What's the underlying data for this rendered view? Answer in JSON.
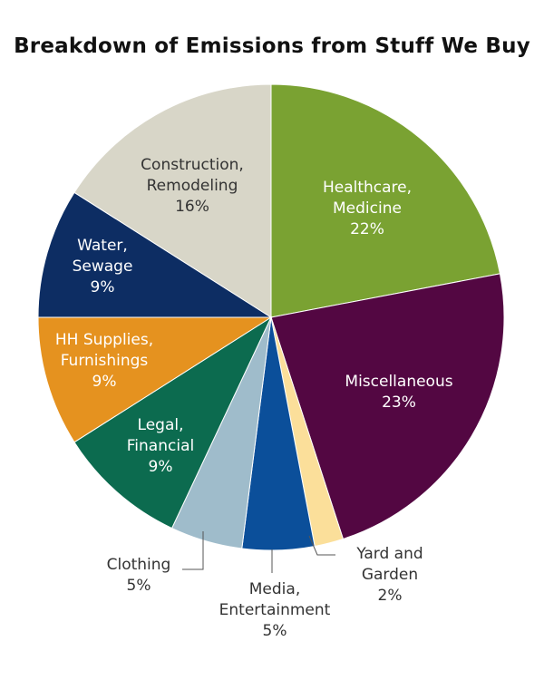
{
  "chart_data": {
    "type": "pie",
    "title": "Breakdown of Emissions from Stuff We Buy",
    "unit": "%",
    "slices": [
      {
        "label_lines": [
          "Healthcare,",
          "Medicine"
        ],
        "value": 22,
        "value_label": "22%",
        "color": "#7aa232",
        "text_color": "#ffffff"
      },
      {
        "label_lines": [
          "Miscellaneous"
        ],
        "value": 23,
        "value_label": "23%",
        "color": "#530742",
        "text_color": "#ffffff"
      },
      {
        "label_lines": [
          "Yard and",
          "Garden"
        ],
        "value": 2,
        "value_label": "2%",
        "color": "#fbdf9a",
        "text_color": "#333333"
      },
      {
        "label_lines": [
          "Media,",
          "Entertainment"
        ],
        "value": 5,
        "value_label": "5%",
        "color": "#0b4f9a",
        "text_color": "#333333"
      },
      {
        "label_lines": [
          "Clothing"
        ],
        "value": 5,
        "value_label": "5%",
        "color": "#9fbccb",
        "text_color": "#333333"
      },
      {
        "label_lines": [
          "Legal,",
          "Financial"
        ],
        "value": 9,
        "value_label": "9%",
        "color": "#0c6b4f",
        "text_color": "#ffffff"
      },
      {
        "label_lines": [
          "HH Supplies,",
          "Furnishings"
        ],
        "value": 9,
        "value_label": "9%",
        "color": "#e5921f",
        "text_color": "#ffffff"
      },
      {
        "label_lines": [
          "Water,",
          "Sewage"
        ],
        "value": 9,
        "value_label": "9%",
        "color": "#0d2d63",
        "text_color": "#ffffff"
      },
      {
        "label_lines": [
          "Construction,",
          "Remodeling"
        ],
        "value": 16,
        "value_label": "16%",
        "color": "#d8d6c8",
        "text_color": "#333333"
      }
    ]
  }
}
